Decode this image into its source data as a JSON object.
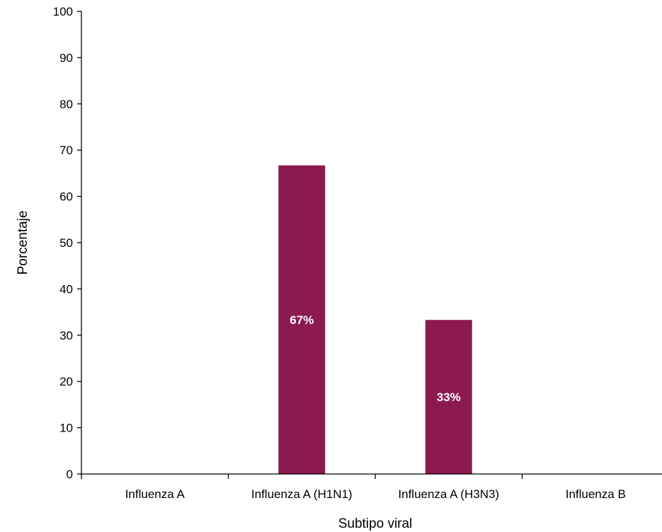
{
  "chart_data": {
    "type": "bar",
    "title": "",
    "xlabel": "Subtipo viral",
    "ylabel": "Porcentaje",
    "categories": [
      "Influenza A",
      "Influenza A (H1N1)",
      "Influenza A (H3N3)",
      "Influenza B"
    ],
    "values": [
      0,
      66.7,
      33.3,
      0
    ],
    "data_labels": [
      "",
      "67%",
      "33%",
      ""
    ],
    "ylim": [
      0,
      100
    ],
    "yticks": [
      0,
      10,
      20,
      30,
      40,
      50,
      60,
      70,
      80,
      90,
      100
    ],
    "grid": false,
    "legend": "none",
    "bar_color": "#8B1A50"
  }
}
